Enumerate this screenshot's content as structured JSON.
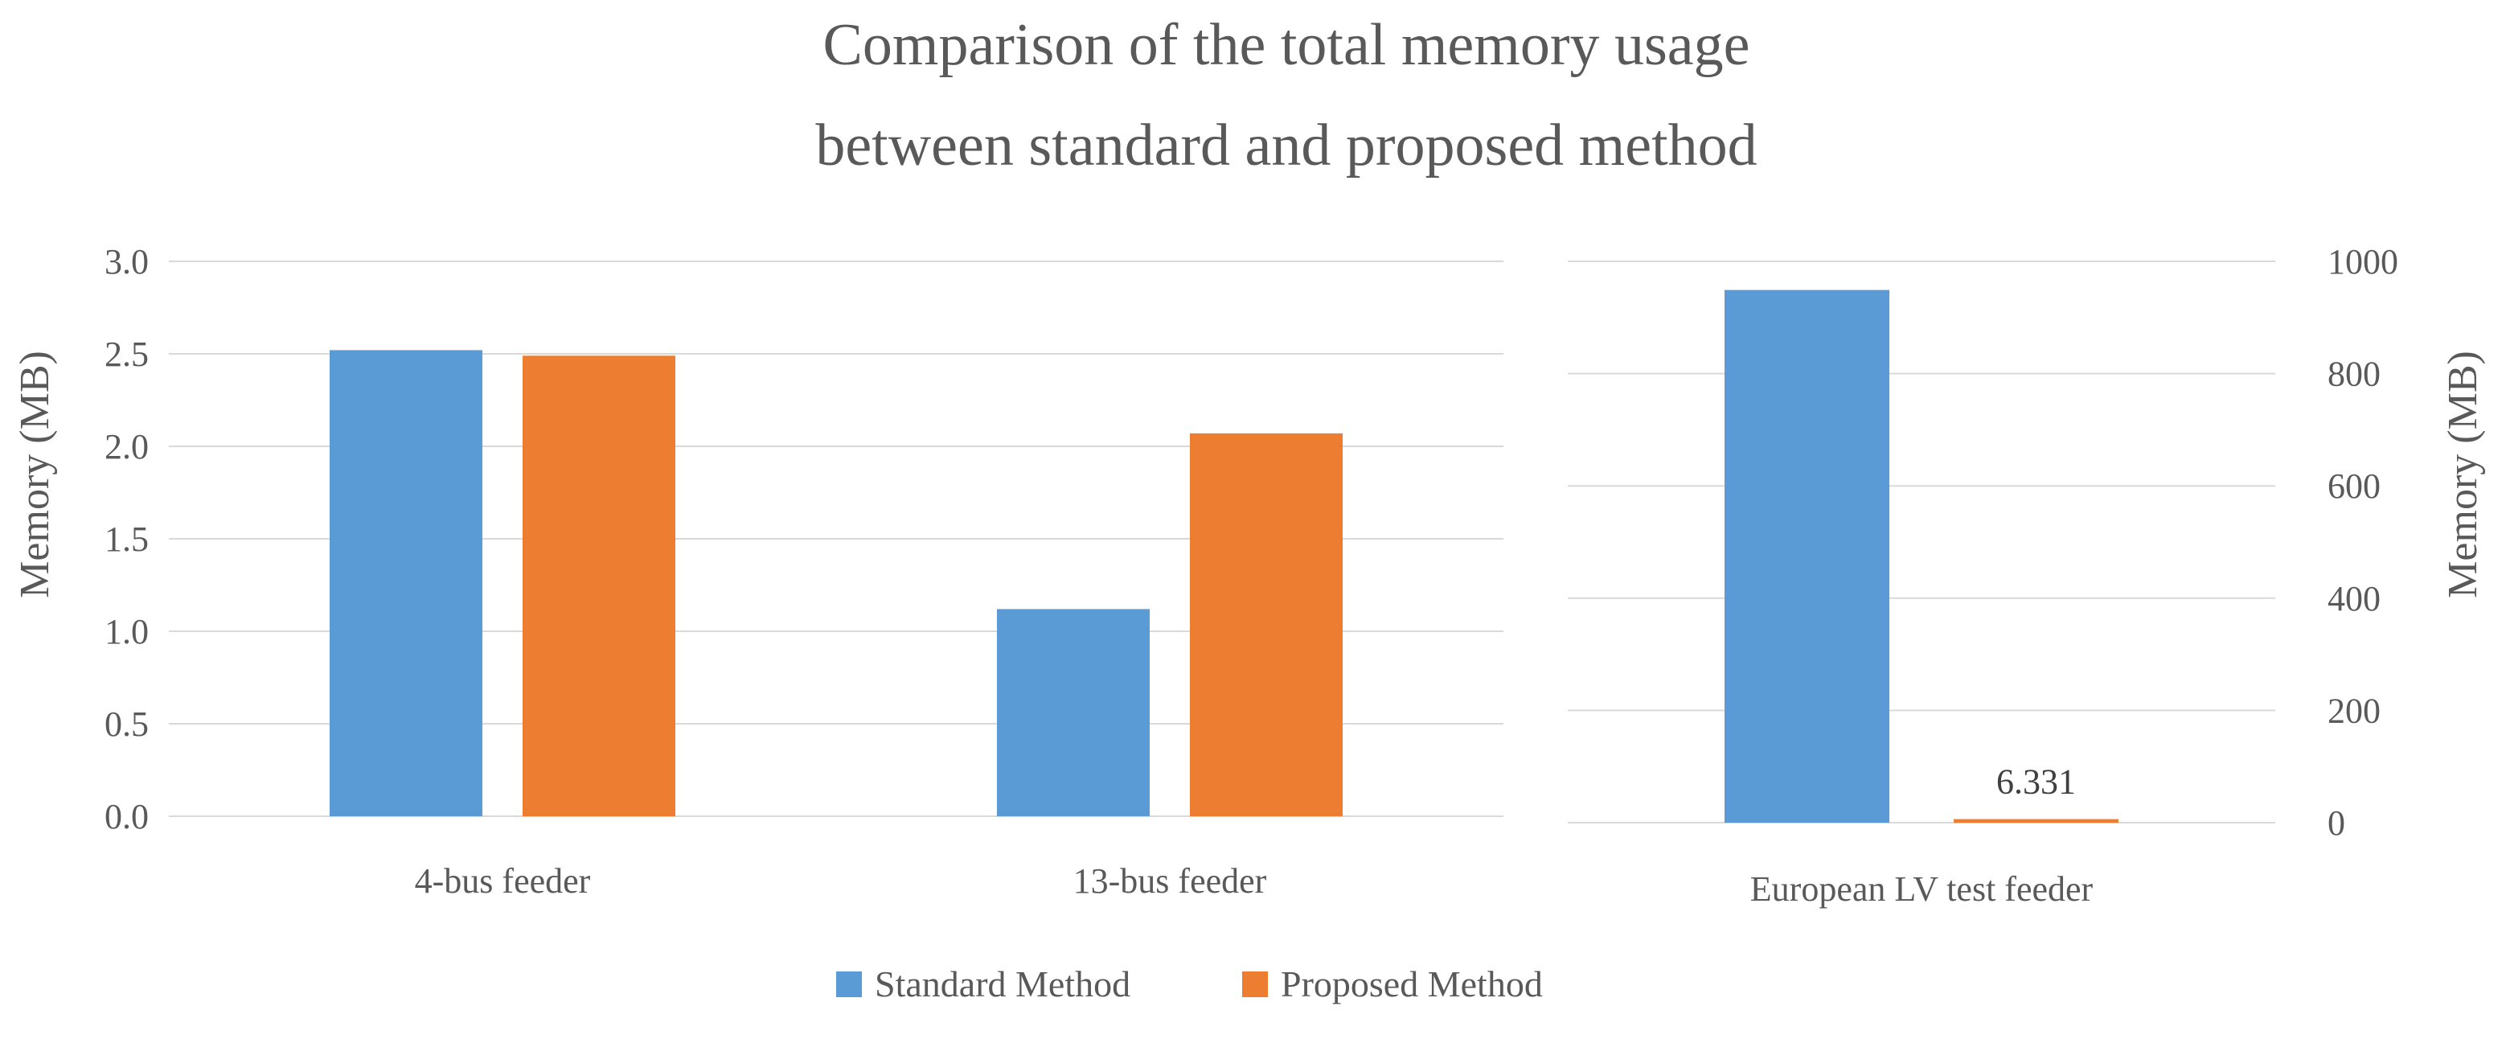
{
  "chart_data": {
    "type": "bar",
    "title": [
      "Comparison of the total memory usage",
      "between standard and proposed method"
    ],
    "colors": {
      "Standard Method": "#5b9bd5",
      "Proposed Method": "#ed7d31"
    },
    "legend": {
      "position": "bottom",
      "entries": [
        "Standard Method",
        "Proposed Method"
      ]
    },
    "grid": true,
    "panels": [
      {
        "name": "left",
        "ylabel": "Memory (MB)",
        "ylim": [
          0,
          3.0
        ],
        "yticks": [
          "0.0",
          "0.5",
          "1.0",
          "1.5",
          "2.0",
          "2.5",
          "3.0"
        ],
        "categories": [
          "4-bus feeder",
          "13-bus feeder"
        ],
        "series": [
          {
            "name": "Standard Method",
            "values": [
              2.52,
              1.12
            ]
          },
          {
            "name": "Proposed Method",
            "values": [
              2.49,
              2.07
            ]
          }
        ]
      },
      {
        "name": "right",
        "ylabel": "Memory (MB)",
        "ylim": [
          0,
          1000
        ],
        "yticks": [
          "0",
          "200",
          "400",
          "600",
          "800",
          "1000"
        ],
        "categories": [
          "European LV test feeder"
        ],
        "series": [
          {
            "name": "Standard Method",
            "values": [
              949
            ]
          },
          {
            "name": "Proposed Method",
            "values": [
              6.331
            ]
          }
        ],
        "data_labels": {
          "Proposed Method": "6.331"
        }
      }
    ]
  }
}
